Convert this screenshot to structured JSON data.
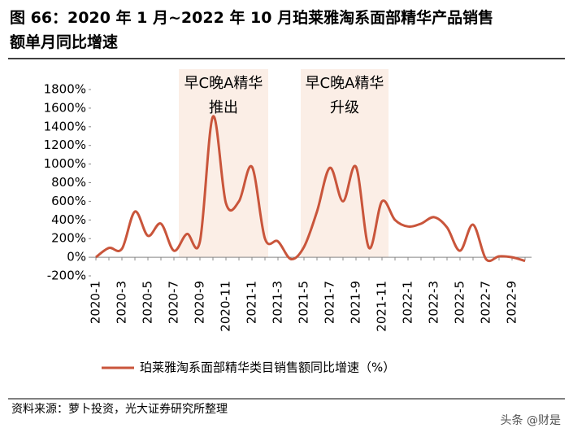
{
  "chart_data": {
    "type": "line",
    "title": [
      "图 66：2020 年 1 月~2022 年 10 月珀莱雅淘系面部精华产品销售",
      "额单月同比增速"
    ],
    "categories": [
      "2020-1",
      null,
      "2020-3",
      null,
      "2020-5",
      null,
      "2020-7",
      null,
      "2020-9",
      null,
      "2020-11",
      null,
      "2021-1",
      null,
      "2021-3",
      null,
      "2021-5",
      null,
      "2021-7",
      null,
      "2021-9",
      null,
      "2021-11",
      null,
      "2022-1",
      null,
      "2022-3",
      null,
      "2022-5",
      null,
      "2022-7",
      null,
      "2022-9",
      null
    ],
    "series": [
      {
        "name": "珀莱雅淘系面部精华类目销售额同比增速（%）",
        "color": "#c9553b",
        "values": [
          0,
          100,
          90,
          490,
          230,
          360,
          70,
          250,
          170,
          1510,
          580,
          600,
          970,
          200,
          170,
          -20,
          110,
          490,
          960,
          600,
          970,
          100,
          600,
          400,
          330,
          360,
          430,
          320,
          70,
          350,
          -20,
          10,
          0,
          -40
        ]
      }
    ],
    "ylim": [
      -200,
      1800
    ],
    "yticks": [
      {
        "value": -200,
        "label": "-200%"
      },
      {
        "value": 0,
        "label": "0%"
      },
      {
        "value": 200,
        "label": "200%"
      },
      {
        "value": 400,
        "label": "400%"
      },
      {
        "value": 600,
        "label": "600%"
      },
      {
        "value": 800,
        "label": "800%"
      },
      {
        "value": 1000,
        "label": "1000%"
      },
      {
        "value": 1200,
        "label": "1200%"
      },
      {
        "value": 1400,
        "label": "1400%"
      },
      {
        "value": 1600,
        "label": "1600%"
      },
      {
        "value": 1800,
        "label": "1800%"
      }
    ],
    "annotations": [
      [
        "早C晚A精华",
        "推出"
      ],
      [
        "早C晚A精华",
        "升级"
      ]
    ],
    "legend": "bottom"
  },
  "source": "资料来源：萝卜投资，光大证券研究所整理",
  "watermark": "头条 @财是"
}
